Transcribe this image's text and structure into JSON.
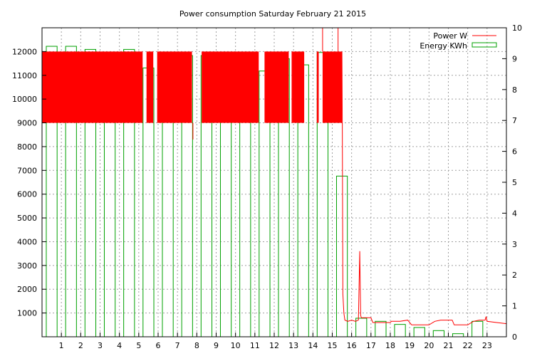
{
  "chart_data": {
    "type": "bar+line",
    "title": "Power consumption Saturday February 21 2015",
    "xlabel": "",
    "ylabel": "",
    "y2label": "",
    "x_range": [
      0,
      24
    ],
    "ylim": [
      0,
      13000
    ],
    "y2lim": [
      0,
      10
    ],
    "grid": true,
    "legend_position": "top-right",
    "x_ticks": [
      "1",
      "2",
      "3",
      "4",
      "5",
      "6",
      "7",
      "8",
      "9",
      "10",
      "11",
      "12",
      "13",
      "14",
      "15",
      "16",
      "17",
      "18",
      "19",
      "20",
      "21",
      "22",
      "23"
    ],
    "y_ticks": [
      "1000",
      "2000",
      "3000",
      "4000",
      "5000",
      "6000",
      "7000",
      "8000",
      "9000",
      "10000",
      "11000",
      "12000"
    ],
    "y2_ticks": [
      "0",
      "1",
      "2",
      "3",
      "4",
      "5",
      "6",
      "7",
      "8",
      "9",
      "10"
    ],
    "colors": {
      "power": "#ff0000",
      "energy": "#00a000"
    },
    "series": [
      {
        "name": "Power W",
        "kind": "line",
        "axis": "left",
        "heavy_cycling_hours": [
          0,
          15.5
        ],
        "heavy_cycling_range_w": [
          9000,
          12000
        ],
        "gap_hours": [
          [
            5.2,
            5.4
          ],
          [
            5.75,
            5.95
          ],
          [
            7.75,
            8.25
          ],
          [
            11.2,
            11.5
          ],
          [
            12.75,
            12.9
          ],
          [
            13.55,
            14.2
          ],
          [
            14.3,
            14.5
          ],
          [
            15.55,
            16
          ]
        ],
        "points": [
          [
            15.5,
            12000
          ],
          [
            15.52,
            9000
          ],
          [
            15.55,
            1800
          ],
          [
            15.6,
            1000
          ],
          [
            15.65,
            700
          ],
          [
            15.8,
            650
          ],
          [
            16.0,
            700
          ],
          [
            16.2,
            650
          ],
          [
            16.35,
            700
          ],
          [
            16.42,
            3600
          ],
          [
            16.47,
            900
          ],
          [
            16.5,
            800
          ],
          [
            17.0,
            800
          ],
          [
            17.1,
            600
          ],
          [
            18.0,
            600
          ],
          [
            18.05,
            650
          ],
          [
            18.5,
            650
          ],
          [
            18.9,
            700
          ],
          [
            19.1,
            500
          ],
          [
            19.5,
            500
          ],
          [
            20.0,
            500
          ],
          [
            20.3,
            650
          ],
          [
            20.6,
            700
          ],
          [
            21.2,
            700
          ],
          [
            21.3,
            500
          ],
          [
            22.0,
            500
          ],
          [
            22.3,
            650
          ],
          [
            22.6,
            700
          ],
          [
            22.9,
            700
          ],
          [
            22.95,
            850
          ],
          [
            23.0,
            650
          ],
          [
            23.5,
            600
          ],
          [
            24.0,
            550
          ]
        ]
      },
      {
        "name": "Energy KWh",
        "kind": "step-bar",
        "axis": "right",
        "x": [
          0,
          1,
          2,
          3,
          4,
          5,
          6,
          7,
          8,
          9,
          10,
          11,
          12,
          13,
          14,
          15,
          16,
          17,
          18,
          19,
          20,
          21,
          22,
          23
        ],
        "values": [
          9.4,
          9.4,
          9.3,
          9.1,
          9.3,
          8.7,
          9.0,
          9.1,
          9.1,
          9.1,
          9.2,
          8.6,
          9.0,
          8.8,
          9.2,
          5.2,
          0.6,
          0.5,
          0.4,
          0.3,
          0.2,
          0.1,
          0.5,
          0.0
        ]
      }
    ]
  }
}
